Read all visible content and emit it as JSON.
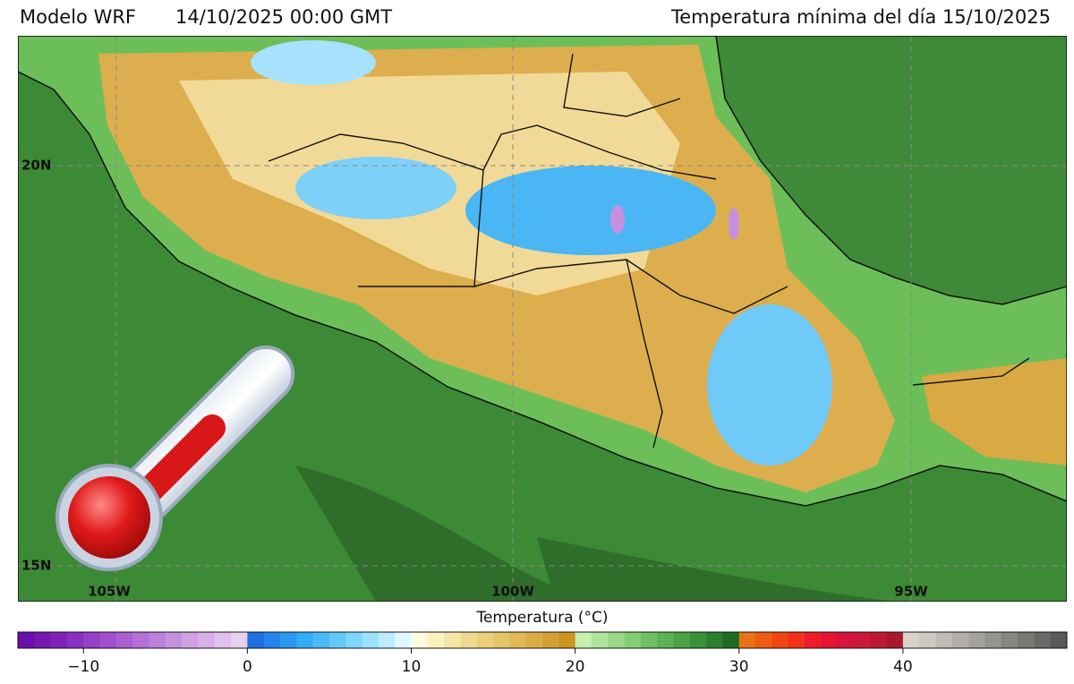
{
  "header": {
    "model": "Modelo WRF",
    "run": "14/10/2025 00:00 GMT",
    "title": "Temperatura mínima del día 15/10/2025"
  },
  "map": {
    "lat_labels": [
      "20N",
      "15N"
    ],
    "lon_labels": [
      "105W",
      "100W",
      "95W"
    ]
  },
  "colorbar": {
    "label": "Temperatura (°C)",
    "range": [
      -14,
      50
    ],
    "ticks": [
      {
        "value": -10,
        "label": "−10"
      },
      0,
      10,
      20,
      30,
      40
    ],
    "colors": [
      "#6a0fa8",
      "#7418b0",
      "#7e22b8",
      "#8a30c0",
      "#9540c6",
      "#a050cc",
      "#aa60d0",
      "#b470d6",
      "#bd80da",
      "#c690e0",
      "#cfa0e4",
      "#d8b0e8",
      "#e0c0ee",
      "#e8d0f2",
      "#1f6fe0",
      "#2585ee",
      "#2b98f2",
      "#35aaf5",
      "#48bbf7",
      "#62c9f9",
      "#7dd6fb",
      "#9be2fc",
      "#bcecfd",
      "#e0f8ff",
      "#fffbe0",
      "#fbf2c0",
      "#f5e6a6",
      "#f0da90",
      "#ebcf7c",
      "#e6c46a",
      "#e0b858",
      "#daac46",
      "#d4a034",
      "#cc9420",
      "#c6efb0",
      "#b0e49c",
      "#9ad888",
      "#85cc76",
      "#70bf64",
      "#5cb254",
      "#4aa346",
      "#3a923a",
      "#2c7f2e",
      "#1e6a22",
      "#e67314",
      "#ed5c12",
      "#f24512",
      "#f4301a",
      "#ef1c2a",
      "#e61435",
      "#d8143a",
      "#cc1838",
      "#bc1a34",
      "#a8182e",
      "#d9d2c8",
      "#cdc8c0",
      "#c0bcb5",
      "#b2afa9",
      "#a4a29c",
      "#96948f",
      "#878682",
      "#797875",
      "#6a6a68",
      "#5a5a5a"
    ]
  }
}
